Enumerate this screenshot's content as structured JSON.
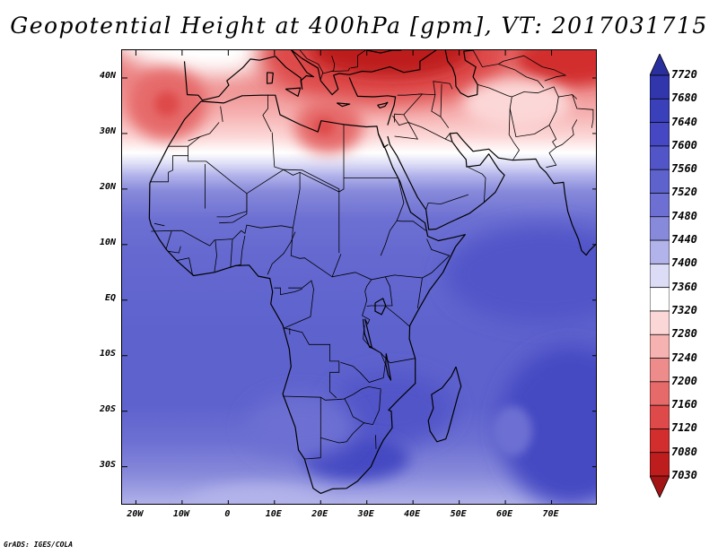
{
  "title": "Geopotential Height at 400hPa [gpm], VT: 2017031715",
  "credit": "GrADS: IGES/COLA",
  "map": {
    "lon_range": [
      -23,
      80
    ],
    "lat_range": [
      -37,
      45
    ],
    "lat_ticks": [
      {
        "value": 40,
        "label": "40N"
      },
      {
        "value": 30,
        "label": "30N"
      },
      {
        "value": 20,
        "label": "20N"
      },
      {
        "value": 10,
        "label": "10N"
      },
      {
        "value": 0,
        "label": "EQ"
      },
      {
        "value": -10,
        "label": "10S"
      },
      {
        "value": -20,
        "label": "20S"
      },
      {
        "value": -30,
        "label": "30S"
      }
    ],
    "lon_ticks": [
      {
        "value": -20,
        "label": "20W"
      },
      {
        "value": -10,
        "label": "10W"
      },
      {
        "value": 0,
        "label": "0"
      },
      {
        "value": 10,
        "label": "10E"
      },
      {
        "value": 20,
        "label": "20E"
      },
      {
        "value": 30,
        "label": "30E"
      },
      {
        "value": 40,
        "label": "40E"
      },
      {
        "value": 50,
        "label": "50E"
      },
      {
        "value": 60,
        "label": "60E"
      },
      {
        "value": 70,
        "label": "70E"
      }
    ]
  },
  "colorbar": {
    "labels": [
      "7720",
      "7680",
      "7640",
      "7600",
      "7560",
      "7520",
      "7480",
      "7440",
      "7400",
      "7360",
      "7320",
      "7280",
      "7240",
      "7200",
      "7160",
      "7120",
      "7080",
      "7030"
    ],
    "colors": [
      "#2a2f9e",
      "#3236ad",
      "#3a3fba",
      "#4548c2",
      "#5155c8",
      "#5e62cd",
      "#6d70d2",
      "#8789da",
      "#b2b3ea",
      "#dcdcf6",
      "#ffffff",
      "#fcd7d7",
      "#f6b1b1",
      "#ee8c8c",
      "#e66a6a",
      "#de4949",
      "#d22e2e",
      "#bd1d1d",
      "#a31414"
    ]
  }
}
